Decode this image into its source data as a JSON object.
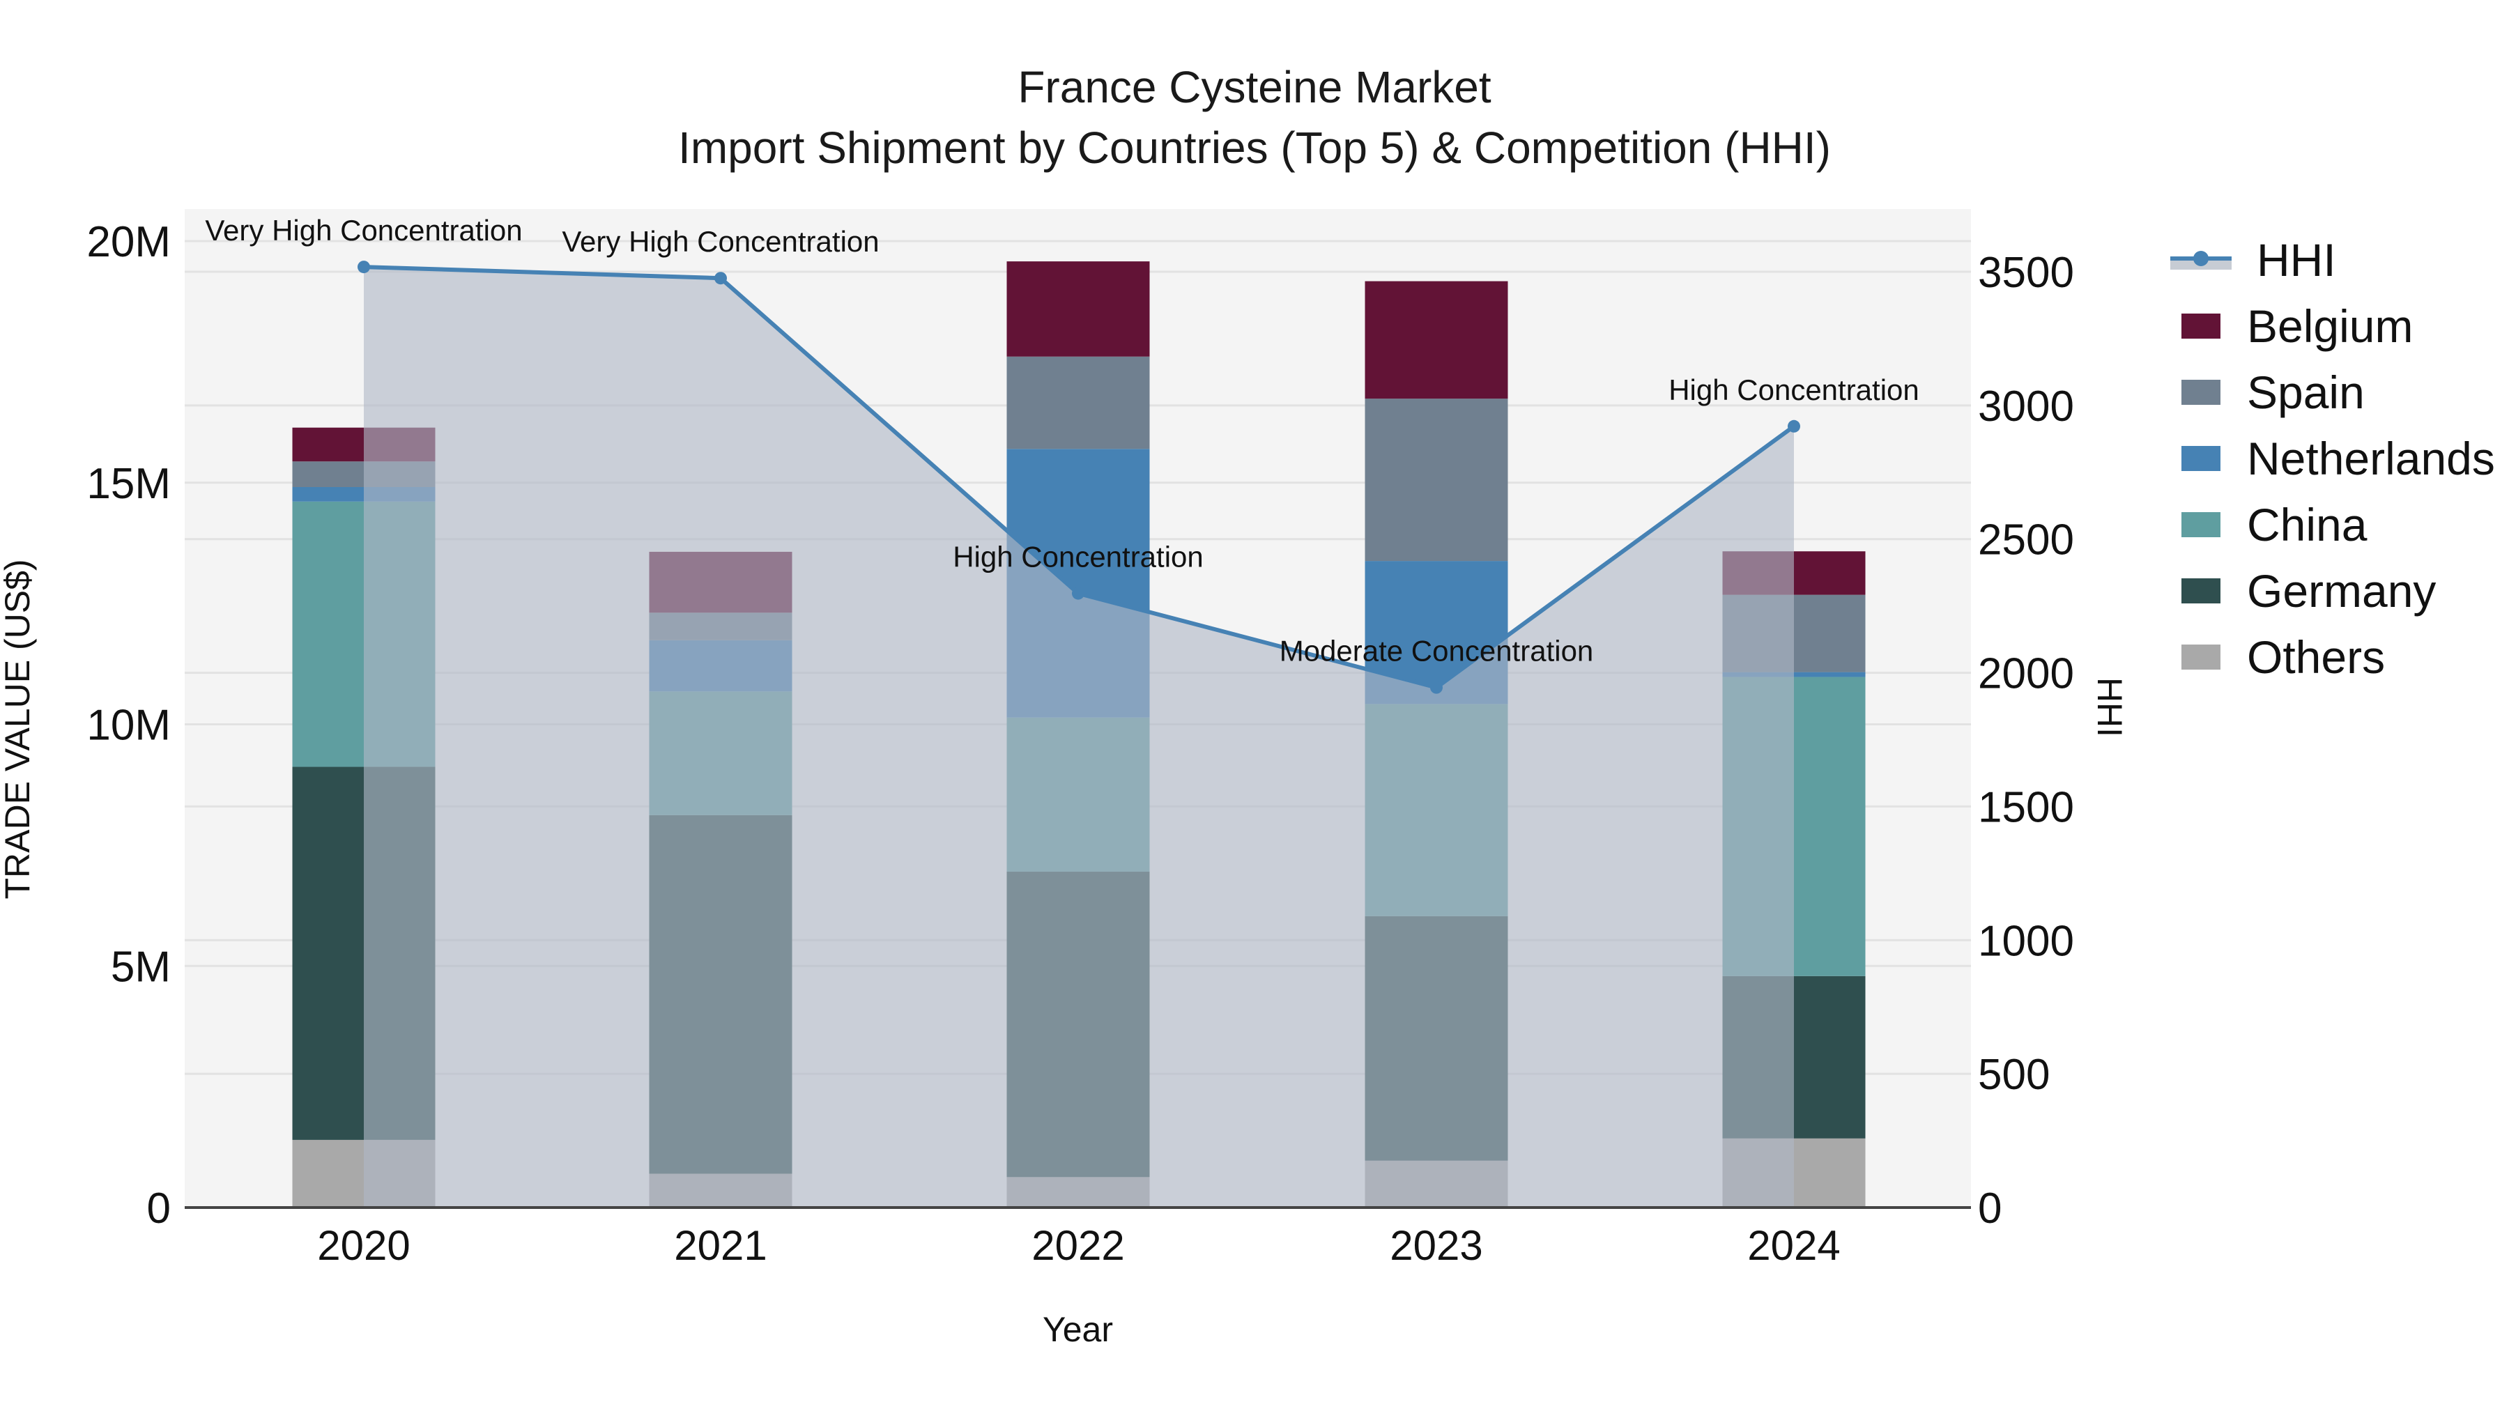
{
  "title": {
    "line1": "France Cysteine Market",
    "line2": "Import Shipment by Countries (Top 5) & Competition (HHI)"
  },
  "axes": {
    "x_label": "Year",
    "y_left_label": "TRADE VALUE (US$)",
    "y_right_label": "HHI",
    "y_left_ticks": [
      "0",
      "5M",
      "10M",
      "15M",
      "20M"
    ],
    "y_right_ticks": [
      "0",
      "500",
      "1000",
      "1500",
      "2000",
      "2500",
      "3000",
      "3500"
    ]
  },
  "legend": {
    "items": [
      {
        "label": "HHI",
        "type": "line",
        "color": "#4682b4"
      },
      {
        "label": "Belgium",
        "type": "bar",
        "color": "#621336"
      },
      {
        "label": "Spain",
        "type": "bar",
        "color": "#708090"
      },
      {
        "label": "Netherlands",
        "type": "bar",
        "color": "#4682b4"
      },
      {
        "label": "China",
        "type": "bar",
        "color": "#5f9ea0"
      },
      {
        "label": "Germany",
        "type": "bar",
        "color": "#2f4f4f"
      },
      {
        "label": "Others",
        "type": "bar",
        "color": "#a9a9a9"
      }
    ]
  },
  "colors": {
    "plot_bg": "#f4f4f4",
    "grid": "#e2e2e2",
    "hhi_line": "#4682b4",
    "hhi_fill": "rgba(176,184,198,0.62)",
    "axis_line": "#444444"
  },
  "chart_data": {
    "type": "bar",
    "title": "France Cysteine Market — Import Shipment by Countries (Top 5) & Competition (HHI)",
    "xlabel": "Year",
    "ylabel": "TRADE VALUE (US$)",
    "y2label": "HHI",
    "categories": [
      "2020",
      "2021",
      "2022",
      "2023",
      "2024"
    ],
    "stacked": true,
    "ylim": [
      0,
      20600000
    ],
    "y2lim": [
      0,
      3730
    ],
    "grid": true,
    "legend_position": "right",
    "series": [
      {
        "name": "Others",
        "color": "#a9a9a9",
        "values": [
          1400000,
          700000,
          630000,
          970000,
          1430000
        ]
      },
      {
        "name": "Germany",
        "color": "#2f4f4f",
        "values": [
          7720000,
          7420000,
          6320000,
          5060000,
          3360000
        ]
      },
      {
        "name": "China",
        "color": "#5f9ea0",
        "values": [
          5490000,
          2560000,
          3190000,
          4390000,
          6190000
        ]
      },
      {
        "name": "Netherlands",
        "color": "#4682b4",
        "values": [
          300000,
          1060000,
          5560000,
          2960000,
          100000
        ]
      },
      {
        "name": "Spain",
        "color": "#708090",
        "values": [
          530000,
          570000,
          1910000,
          3360000,
          1600000
        ]
      },
      {
        "name": "Belgium",
        "color": "#621336",
        "values": [
          700000,
          1260000,
          1970000,
          2430000,
          900000
        ]
      }
    ],
    "line_series": {
      "name": "HHI",
      "axis": "y2",
      "color": "#4682b4",
      "fill": "tozeroy",
      "values": [
        3518,
        3476,
        2297,
        1945,
        2922
      ],
      "annotations": [
        "Very High Concentration",
        "Very High Concentration",
        "High Concentration",
        "Moderate Concentration",
        "High Concentration"
      ]
    }
  }
}
